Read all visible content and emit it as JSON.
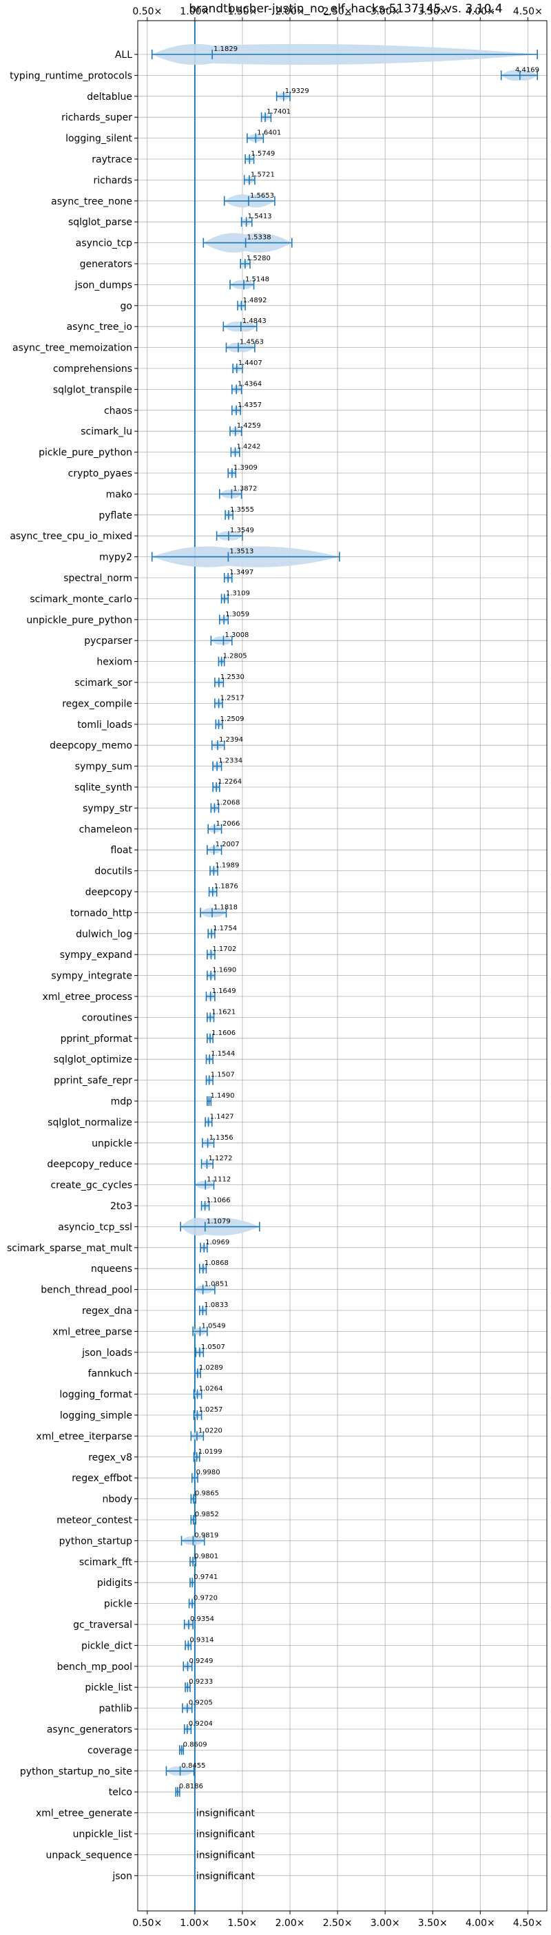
{
  "chart_data": {
    "type": "violin",
    "title": "brandtbucher-justin_no_elf_hacks-5137145 vs. 3.10.4",
    "xlabel": "",
    "ylabel": "",
    "xlim": [
      0.4,
      4.7
    ],
    "x_ticks": [
      0.5,
      1.0,
      1.5,
      2.0,
      2.5,
      3.0,
      3.5,
      4.0,
      4.5
    ],
    "x_tick_labels": [
      "0.50×",
      "1.00×",
      "1.50×",
      "2.00×",
      "2.50×",
      "3.00×",
      "3.50×",
      "4.00×",
      "4.50×"
    ],
    "reference_line": 1.0,
    "grid": true,
    "color": "#1f77b4",
    "fill_color": "#c5daee",
    "insignificant_label": "insignificant",
    "benchmarks": [
      {
        "name": "ALL",
        "value": 1.1829,
        "label": "1.1829",
        "min": 0.55,
        "max": 4.6
      },
      {
        "name": "typing_runtime_protocols",
        "value": 4.4169,
        "label": "4.4169",
        "min": 4.22,
        "max": 4.6
      },
      {
        "name": "deltablue",
        "value": 1.9329,
        "label": "1.9329",
        "min": 1.86,
        "max": 2.0
      },
      {
        "name": "richards_super",
        "value": 1.7401,
        "label": "1.7401",
        "min": 1.7,
        "max": 1.8
      },
      {
        "name": "logging_silent",
        "value": 1.6401,
        "label": "1.6401",
        "min": 1.55,
        "max": 1.72
      },
      {
        "name": "raytrace",
        "value": 1.5749,
        "label": "1.5749",
        "min": 1.53,
        "max": 1.62
      },
      {
        "name": "richards",
        "value": 1.5721,
        "label": "1.5721",
        "min": 1.52,
        "max": 1.63
      },
      {
        "name": "async_tree_none",
        "value": 1.5653,
        "label": "1.5653",
        "min": 1.31,
        "max": 1.84
      },
      {
        "name": "sqlglot_parse",
        "value": 1.5413,
        "label": "1.5413",
        "min": 1.49,
        "max": 1.6
      },
      {
        "name": "asyncio_tcp",
        "value": 1.5338,
        "label": "1.5338",
        "min": 1.09,
        "max": 2.02
      },
      {
        "name": "generators",
        "value": 1.528,
        "label": "1.5280",
        "min": 1.48,
        "max": 1.58
      },
      {
        "name": "json_dumps",
        "value": 1.5148,
        "label": "1.5148",
        "min": 1.37,
        "max": 1.62
      },
      {
        "name": "go",
        "value": 1.4892,
        "label": "1.4892",
        "min": 1.45,
        "max": 1.53
      },
      {
        "name": "async_tree_io",
        "value": 1.4843,
        "label": "1.4843",
        "min": 1.3,
        "max": 1.65
      },
      {
        "name": "async_tree_memoization",
        "value": 1.4563,
        "label": "1.4563",
        "min": 1.33,
        "max": 1.63
      },
      {
        "name": "comprehensions",
        "value": 1.4407,
        "label": "1.4407",
        "min": 1.4,
        "max": 1.5
      },
      {
        "name": "sqlglot_transpile",
        "value": 1.4364,
        "label": "1.4364",
        "min": 1.39,
        "max": 1.49
      },
      {
        "name": "chaos",
        "value": 1.4357,
        "label": "1.4357",
        "min": 1.39,
        "max": 1.48
      },
      {
        "name": "scimark_lu",
        "value": 1.4259,
        "label": "1.4259",
        "min": 1.37,
        "max": 1.49
      },
      {
        "name": "pickle_pure_python",
        "value": 1.4242,
        "label": "1.4242",
        "min": 1.38,
        "max": 1.47
      },
      {
        "name": "crypto_pyaes",
        "value": 1.3909,
        "label": "1.3909",
        "min": 1.35,
        "max": 1.43
      },
      {
        "name": "mako",
        "value": 1.3872,
        "label": "1.3872",
        "min": 1.26,
        "max": 1.49
      },
      {
        "name": "pyflate",
        "value": 1.3555,
        "label": "1.3555",
        "min": 1.32,
        "max": 1.4
      },
      {
        "name": "async_tree_cpu_io_mixed",
        "value": 1.3549,
        "label": "1.3549",
        "min": 1.23,
        "max": 1.5
      },
      {
        "name": "mypy2",
        "value": 1.3513,
        "label": "1.3513",
        "min": 0.55,
        "max": 2.52
      },
      {
        "name": "spectral_norm",
        "value": 1.3497,
        "label": "1.3497",
        "min": 1.31,
        "max": 1.39
      },
      {
        "name": "scimark_monte_carlo",
        "value": 1.3109,
        "label": "1.3109",
        "min": 1.28,
        "max": 1.35
      },
      {
        "name": "unpickle_pure_python",
        "value": 1.3059,
        "label": "1.3059",
        "min": 1.26,
        "max": 1.35
      },
      {
        "name": "pycparser",
        "value": 1.3008,
        "label": "1.3008",
        "min": 1.17,
        "max": 1.39
      },
      {
        "name": "hexiom",
        "value": 1.2805,
        "label": "1.2805",
        "min": 1.25,
        "max": 1.31
      },
      {
        "name": "scimark_sor",
        "value": 1.253,
        "label": "1.2530",
        "min": 1.21,
        "max": 1.3
      },
      {
        "name": "regex_compile",
        "value": 1.2517,
        "label": "1.2517",
        "min": 1.21,
        "max": 1.29
      },
      {
        "name": "tomli_loads",
        "value": 1.2509,
        "label": "1.2509",
        "min": 1.22,
        "max": 1.29
      },
      {
        "name": "deepcopy_memo",
        "value": 1.2394,
        "label": "1.2394",
        "min": 1.18,
        "max": 1.31
      },
      {
        "name": "sympy_sum",
        "value": 1.2334,
        "label": "1.2334",
        "min": 1.19,
        "max": 1.28
      },
      {
        "name": "sqlite_synth",
        "value": 1.2264,
        "label": "1.2264",
        "min": 1.19,
        "max": 1.26
      },
      {
        "name": "sympy_str",
        "value": 1.2068,
        "label": "1.2068",
        "min": 1.17,
        "max": 1.25
      },
      {
        "name": "chameleon",
        "value": 1.2066,
        "label": "1.2066",
        "min": 1.14,
        "max": 1.28
      },
      {
        "name": "float",
        "value": 1.2007,
        "label": "1.2007",
        "min": 1.13,
        "max": 1.28
      },
      {
        "name": "docutils",
        "value": 1.1989,
        "label": "1.1989",
        "min": 1.16,
        "max": 1.24
      },
      {
        "name": "deepcopy",
        "value": 1.1876,
        "label": "1.1876",
        "min": 1.15,
        "max": 1.23
      },
      {
        "name": "tornado_http",
        "value": 1.1818,
        "label": "1.1818",
        "min": 1.06,
        "max": 1.33
      },
      {
        "name": "dulwich_log",
        "value": 1.1754,
        "label": "1.1754",
        "min": 1.14,
        "max": 1.21
      },
      {
        "name": "sympy_expand",
        "value": 1.1702,
        "label": "1.1702",
        "min": 1.13,
        "max": 1.21
      },
      {
        "name": "sympy_integrate",
        "value": 1.169,
        "label": "1.1690",
        "min": 1.13,
        "max": 1.21
      },
      {
        "name": "xml_etree_process",
        "value": 1.1649,
        "label": "1.1649",
        "min": 1.12,
        "max": 1.21
      },
      {
        "name": "coroutines",
        "value": 1.1621,
        "label": "1.1621",
        "min": 1.13,
        "max": 1.2
      },
      {
        "name": "pprint_pformat",
        "value": 1.1606,
        "label": "1.1606",
        "min": 1.13,
        "max": 1.19
      },
      {
        "name": "sqlglot_optimize",
        "value": 1.1544,
        "label": "1.1544",
        "min": 1.12,
        "max": 1.19
      },
      {
        "name": "pprint_safe_repr",
        "value": 1.1507,
        "label": "1.1507",
        "min": 1.12,
        "max": 1.19
      },
      {
        "name": "mdp",
        "value": 1.149,
        "label": "1.1490",
        "min": 1.13,
        "max": 1.17
      },
      {
        "name": "sqlglot_normalize",
        "value": 1.1427,
        "label": "1.1427",
        "min": 1.11,
        "max": 1.18
      },
      {
        "name": "unpickle",
        "value": 1.1356,
        "label": "1.1356",
        "min": 1.08,
        "max": 1.2
      },
      {
        "name": "deepcopy_reduce",
        "value": 1.1272,
        "label": "1.1272",
        "min": 1.07,
        "max": 1.19
      },
      {
        "name": "create_gc_cycles",
        "value": 1.1112,
        "label": "1.1112",
        "min": 1.0,
        "max": 1.2
      },
      {
        "name": "2to3",
        "value": 1.1066,
        "label": "1.1066",
        "min": 1.07,
        "max": 1.15
      },
      {
        "name": "asyncio_tcp_ssl",
        "value": 1.1079,
        "label": "1.1079",
        "min": 0.85,
        "max": 1.68
      },
      {
        "name": "scimark_sparse_mat_mult",
        "value": 1.0969,
        "label": "1.0969",
        "min": 1.06,
        "max": 1.13
      },
      {
        "name": "nqueens",
        "value": 1.0868,
        "label": "1.0868",
        "min": 1.05,
        "max": 1.12
      },
      {
        "name": "bench_thread_pool",
        "value": 1.0851,
        "label": "1.0851",
        "min": 1.0,
        "max": 1.21
      },
      {
        "name": "regex_dna",
        "value": 1.0833,
        "label": "1.0833",
        "min": 1.05,
        "max": 1.12
      },
      {
        "name": "xml_etree_parse",
        "value": 1.0549,
        "label": "1.0549",
        "min": 0.98,
        "max": 1.13
      },
      {
        "name": "json_loads",
        "value": 1.0507,
        "label": "1.0507",
        "min": 1.01,
        "max": 1.09
      },
      {
        "name": "fannkuch",
        "value": 1.0289,
        "label": "1.0289",
        "min": 1.0,
        "max": 1.06
      },
      {
        "name": "logging_format",
        "value": 1.0264,
        "label": "1.0264",
        "min": 0.99,
        "max": 1.07
      },
      {
        "name": "logging_simple",
        "value": 1.0257,
        "label": "1.0257",
        "min": 0.99,
        "max": 1.07
      },
      {
        "name": "xml_etree_iterparse",
        "value": 1.022,
        "label": "1.0220",
        "min": 0.96,
        "max": 1.09
      },
      {
        "name": "regex_v8",
        "value": 1.0199,
        "label": "1.0199",
        "min": 0.99,
        "max": 1.05
      },
      {
        "name": "regex_effbot",
        "value": 0.998,
        "label": "0.9980",
        "min": 0.97,
        "max": 1.03
      },
      {
        "name": "nbody",
        "value": 0.9865,
        "label": "0.9865",
        "min": 0.96,
        "max": 1.01
      },
      {
        "name": "meteor_contest",
        "value": 0.9852,
        "label": "0.9852",
        "min": 0.96,
        "max": 1.01
      },
      {
        "name": "python_startup",
        "value": 0.9819,
        "label": "0.9819",
        "min": 0.86,
        "max": 1.1
      },
      {
        "name": "scimark_fft",
        "value": 0.9801,
        "label": "0.9801",
        "min": 0.95,
        "max": 1.01
      },
      {
        "name": "pidigits",
        "value": 0.9741,
        "label": "0.9741",
        "min": 0.95,
        "max": 1.0
      },
      {
        "name": "pickle",
        "value": 0.972,
        "label": "0.9720",
        "min": 0.94,
        "max": 1.0
      },
      {
        "name": "gc_traversal",
        "value": 0.9354,
        "label": "0.9354",
        "min": 0.89,
        "max": 0.98
      },
      {
        "name": "pickle_dict",
        "value": 0.9314,
        "label": "0.9314",
        "min": 0.9,
        "max": 0.96
      },
      {
        "name": "bench_mp_pool",
        "value": 0.9249,
        "label": "0.9249",
        "min": 0.88,
        "max": 0.97
      },
      {
        "name": "pickle_list",
        "value": 0.9233,
        "label": "0.9233",
        "min": 0.9,
        "max": 0.95
      },
      {
        "name": "pathlib",
        "value": 0.9205,
        "label": "0.9205",
        "min": 0.87,
        "max": 0.97
      },
      {
        "name": "async_generators",
        "value": 0.9204,
        "label": "0.9204",
        "min": 0.89,
        "max": 0.96
      },
      {
        "name": "coverage",
        "value": 0.8609,
        "label": "0.8609",
        "min": 0.84,
        "max": 0.88
      },
      {
        "name": "python_startup_no_site",
        "value": 0.8455,
        "label": "0.8455",
        "min": 0.7,
        "max": 0.99
      },
      {
        "name": "telco",
        "value": 0.8186,
        "label": "0.8186",
        "min": 0.8,
        "max": 0.84
      },
      {
        "name": "xml_etree_generate",
        "value": null,
        "label": "insignificant"
      },
      {
        "name": "unpickle_list",
        "value": null,
        "label": "insignificant"
      },
      {
        "name": "unpack_sequence",
        "value": null,
        "label": "insignificant"
      },
      {
        "name": "json",
        "value": null,
        "label": "insignificant"
      }
    ]
  }
}
